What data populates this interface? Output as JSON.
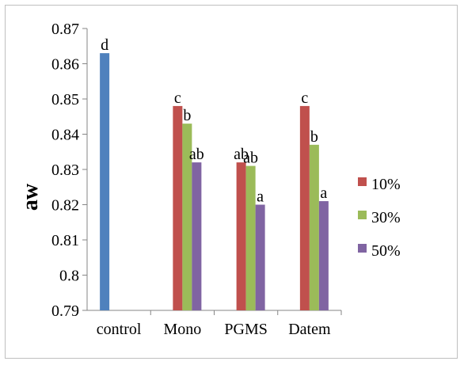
{
  "chart_data": {
    "type": "bar",
    "title": "",
    "xlabel": "",
    "ylabel": "aw",
    "ylim": [
      0.79,
      0.87
    ],
    "yticks": [
      "0.79",
      "0.8",
      "0.81",
      "0.82",
      "0.83",
      "0.84",
      "0.85",
      "0.86",
      "0.87"
    ],
    "categories": [
      "control",
      "Mono",
      "PGMS",
      "Datem"
    ],
    "grid": false,
    "legend_position": "right",
    "control": {
      "value": 0.863,
      "label": "d",
      "color": "#4f81bd"
    },
    "series": [
      {
        "name": "10%",
        "color": "#c0504d",
        "values": [
          null,
          0.848,
          0.832,
          0.848
        ],
        "labels": [
          null,
          "c",
          "ab",
          "c"
        ]
      },
      {
        "name": "30%",
        "color": "#9bbb59",
        "values": [
          null,
          0.843,
          0.831,
          0.837
        ],
        "labels": [
          null,
          "b",
          "ab",
          "b"
        ]
      },
      {
        "name": "50%",
        "color": "#8064a2",
        "values": [
          null,
          0.832,
          0.82,
          0.821
        ],
        "labels": [
          null,
          "ab",
          "a",
          "a"
        ]
      }
    ]
  }
}
